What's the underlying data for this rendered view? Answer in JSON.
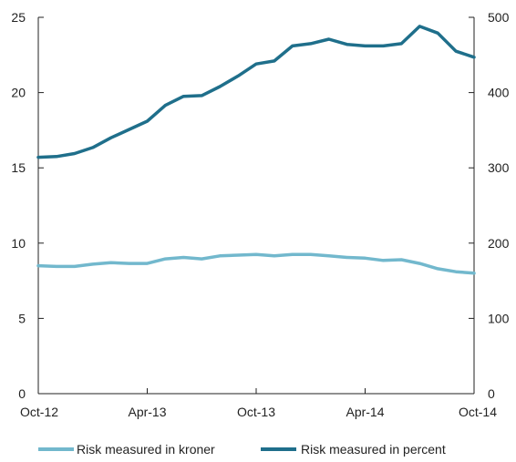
{
  "chart_data": {
    "type": "line",
    "x": [
      "Oct-12",
      "Nov-12",
      "Dec-12",
      "Jan-13",
      "Feb-13",
      "Mar-13",
      "Apr-13",
      "May-13",
      "Jun-13",
      "Jul-13",
      "Aug-13",
      "Sep-13",
      "Oct-13",
      "Nov-13",
      "Dec-13",
      "Jan-14",
      "Feb-14",
      "Mar-14",
      "Apr-14",
      "May-14",
      "Jun-14",
      "Jul-14",
      "Aug-14",
      "Sep-14",
      "Oct-14"
    ],
    "x_tick_labels": [
      "Oct-12",
      "Apr-13",
      "Oct-13",
      "Apr-14",
      "Oct-14"
    ],
    "y_left": {
      "lim": [
        0,
        25
      ],
      "ticks": [
        "0",
        "5",
        "10",
        "15",
        "20",
        "25"
      ]
    },
    "y_right": {
      "lim": [
        0,
        500
      ],
      "ticks": [
        "0",
        "100",
        "200",
        "300",
        "400",
        "500"
      ]
    },
    "series": [
      {
        "name": "Risk measured in kroner",
        "axis": "left",
        "color": "#72b8cd",
        "values": [
          8.5,
          8.45,
          8.45,
          8.6,
          8.7,
          8.65,
          8.65,
          8.95,
          9.05,
          8.95,
          9.15,
          9.2,
          9.25,
          9.15,
          9.25,
          9.25,
          9.15,
          9.05,
          9.0,
          8.85,
          8.9,
          8.65,
          8.3,
          8.1,
          8.0
        ]
      },
      {
        "name": "Risk measured in percent",
        "axis": "right",
        "color": "#1f6f8b",
        "values": [
          314,
          315,
          319,
          327,
          340,
          351,
          362,
          383,
          395,
          396,
          408,
          422,
          438,
          442,
          462,
          465,
          471,
          464,
          462,
          462,
          465,
          488,
          479,
          455,
          447
        ]
      }
    ],
    "legend_position": "bottom",
    "grid": false
  }
}
